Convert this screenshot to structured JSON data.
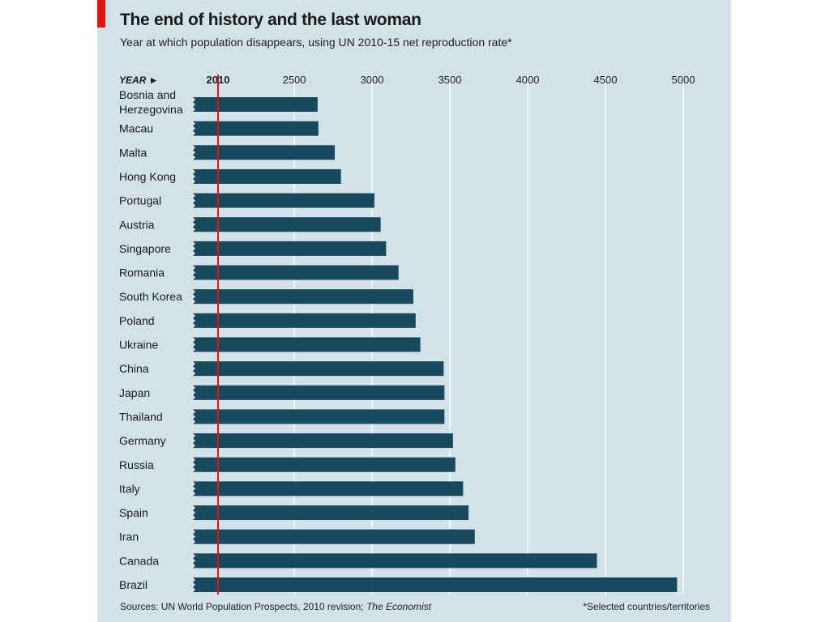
{
  "header": {
    "title": "The end of history and the last woman",
    "subtitle": "Year at which population disappears, using UN 2010-15 net reproduction rate*"
  },
  "footer": {
    "source_prefix": "Sources: UN World Population Prospects, 2010 revision; ",
    "source_italic": "The Economist",
    "note": "*Selected countries/territories"
  },
  "colors": {
    "background": "#d3e1e9",
    "bar": "#174a5e",
    "gridline": "#ffffff",
    "reference_line": "#e3120b",
    "brand_tab": "#e3120b"
  },
  "chart_data": {
    "type": "bar",
    "orientation": "horizontal",
    "axis_prefix": "YEAR ►",
    "baseline": 2010,
    "xlim": [
      2010,
      5000
    ],
    "ticks": [
      2010,
      2500,
      3000,
      3500,
      4000,
      4500,
      5000
    ],
    "highlight_tick": 2010,
    "grid": true,
    "categories": [
      [
        "Bosnia and",
        "Herzegovina"
      ],
      [
        "Macau"
      ],
      [
        "Malta"
      ],
      [
        "Hong Kong"
      ],
      [
        "Portugal"
      ],
      [
        "Austria"
      ],
      [
        "Singapore"
      ],
      [
        "Romania"
      ],
      [
        "South Korea"
      ],
      [
        "Poland"
      ],
      [
        "Ukraine"
      ],
      [
        "China"
      ],
      [
        "Japan"
      ],
      [
        "Thailand"
      ],
      [
        "Germany"
      ],
      [
        "Russia"
      ],
      [
        "Italy"
      ],
      [
        "Spain"
      ],
      [
        "Iran"
      ],
      [
        "Canada"
      ],
      [
        "Brazil"
      ]
    ],
    "values": [
      2650,
      2655,
      2760,
      2800,
      3015,
      3055,
      3090,
      3170,
      3265,
      3280,
      3310,
      3460,
      3465,
      3465,
      3520,
      3535,
      3585,
      3620,
      3660,
      4445,
      4960
    ]
  }
}
